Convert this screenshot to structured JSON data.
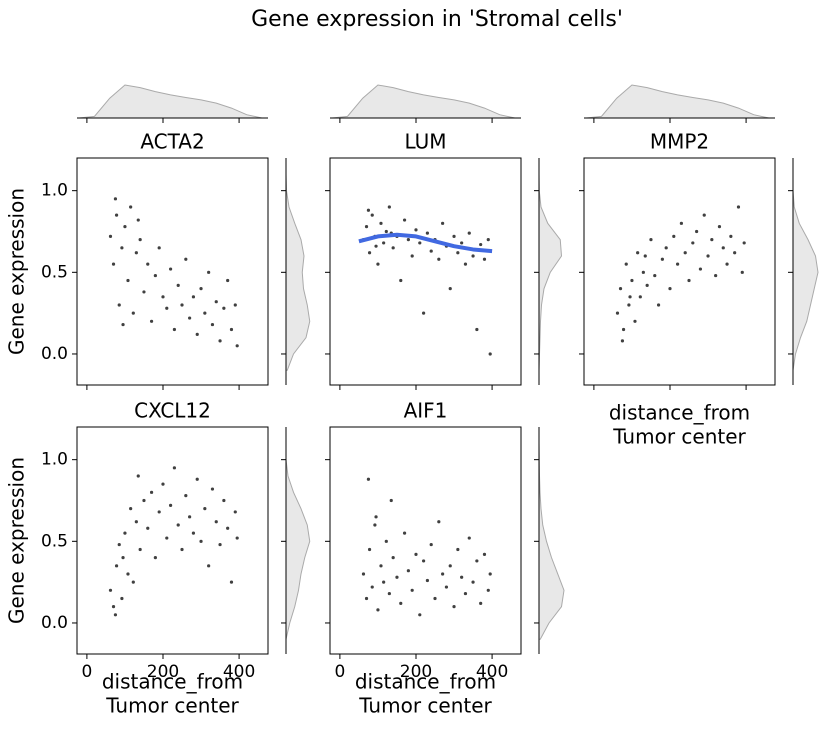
{
  "chart_data": {
    "type": "scatter",
    "title": "Gene expression in 'Stromal cells'",
    "y_label": "Gene expression",
    "x_label": [
      "distance_from",
      "Tumor center"
    ],
    "xlim": [
      -26,
      476
    ],
    "xticks": [
      0,
      200,
      400
    ],
    "ylim": [
      -0.19,
      1.2
    ],
    "yticks": [
      {
        "value": 0,
        "label": "0.0"
      },
      0.5,
      {
        "value": 1,
        "label": "1.0"
      }
    ],
    "point_color": "#000000",
    "kde_fill": "#e8e8e8",
    "kde_stroke": "#aaaaaa",
    "x_kde": {
      "x": [
        -20,
        20,
        60,
        100,
        140,
        180,
        220,
        260,
        300,
        340,
        380,
        420,
        460
      ],
      "density": [
        0,
        0.05,
        0.6,
        1.0,
        0.92,
        0.8,
        0.7,
        0.62,
        0.55,
        0.45,
        0.3,
        0.1,
        0
      ]
    },
    "panels": [
      {
        "title": "ACTA2",
        "x": [
          62,
          70,
          78,
          85,
          92,
          100,
          108,
          115,
          122,
          130,
          140,
          150,
          160,
          170,
          180,
          190,
          200,
          210,
          220,
          230,
          240,
          250,
          260,
          270,
          280,
          290,
          300,
          310,
          320,
          330,
          340,
          350,
          360,
          370,
          380,
          390,
          395,
          75,
          95,
          135
        ],
        "y": [
          0.72,
          0.55,
          0.85,
          0.3,
          0.65,
          0.78,
          0.45,
          0.9,
          0.25,
          0.62,
          0.7,
          0.38,
          0.55,
          0.2,
          0.48,
          0.65,
          0.35,
          0.28,
          0.52,
          0.15,
          0.42,
          0.3,
          0.58,
          0.22,
          0.35,
          0.12,
          0.4,
          0.25,
          0.5,
          0.18,
          0.32,
          0.08,
          0.28,
          0.45,
          0.15,
          0.3,
          0.05,
          0.95,
          0.18,
          0.82
        ],
        "y_kde": {
          "y": [
            -0.1,
            0,
            0.1,
            0.2,
            0.3,
            0.4,
            0.5,
            0.6,
            0.7,
            0.8,
            0.9,
            1.0,
            1.1
          ],
          "density": [
            0.05,
            0.3,
            0.8,
            0.95,
            0.85,
            0.7,
            0.65,
            0.72,
            0.6,
            0.35,
            0.12,
            0.02,
            0
          ]
        }
      },
      {
        "title": "LUM",
        "x": [
          62,
          70,
          78,
          85,
          92,
          100,
          108,
          115,
          122,
          130,
          140,
          150,
          160,
          170,
          180,
          190,
          200,
          210,
          220,
          230,
          240,
          250,
          260,
          270,
          280,
          290,
          300,
          310,
          320,
          330,
          340,
          350,
          360,
          370,
          380,
          390,
          395,
          75,
          95,
          135
        ],
        "y": [
          0.7,
          0.78,
          0.62,
          0.85,
          0.72,
          0.55,
          0.8,
          0.68,
          0.75,
          0.9,
          0.65,
          0.72,
          0.45,
          0.82,
          0.7,
          0.6,
          0.76,
          0.68,
          0.25,
          0.74,
          0.63,
          0.7,
          0.58,
          0.8,
          0.66,
          0.4,
          0.72,
          0.62,
          0.68,
          0.55,
          0.74,
          0.6,
          0.15,
          0.67,
          0.58,
          0.7,
          0.0,
          0.88,
          0.66,
          0.74
        ],
        "fit": {
          "x": [
            50,
            100,
            150,
            200,
            250,
            300,
            350,
            400
          ],
          "y": [
            0.69,
            0.72,
            0.73,
            0.72,
            0.69,
            0.66,
            0.64,
            0.63
          ],
          "color": "#4169e1"
        },
        "y_kde": {
          "y": [
            -0.1,
            0,
            0.1,
            0.2,
            0.3,
            0.4,
            0.5,
            0.6,
            0.7,
            0.8,
            0.9,
            1.0,
            1.1
          ],
          "density": [
            0,
            0.02,
            0.04,
            0.06,
            0.1,
            0.2,
            0.45,
            0.9,
            0.85,
            0.35,
            0.08,
            0.01,
            0
          ]
        }
      },
      {
        "title": "MMP2",
        "x": [
          62,
          70,
          78,
          85,
          92,
          100,
          108,
          115,
          122,
          130,
          140,
          150,
          160,
          170,
          180,
          190,
          200,
          210,
          220,
          230,
          240,
          250,
          260,
          270,
          280,
          290,
          300,
          310,
          320,
          330,
          340,
          350,
          360,
          370,
          380,
          390,
          395,
          75,
          95,
          135
        ],
        "y": [
          0.25,
          0.4,
          0.15,
          0.55,
          0.3,
          0.45,
          0.2,
          0.62,
          0.35,
          0.5,
          0.42,
          0.7,
          0.48,
          0.3,
          0.58,
          0.65,
          0.4,
          0.72,
          0.55,
          0.8,
          0.62,
          0.45,
          0.68,
          0.75,
          0.52,
          0.85,
          0.6,
          0.7,
          0.48,
          0.78,
          0.65,
          0.55,
          0.72,
          0.62,
          0.9,
          0.5,
          0.68,
          0.08,
          0.35,
          0.6
        ],
        "y_kde": {
          "y": [
            -0.1,
            0,
            0.1,
            0.2,
            0.3,
            0.4,
            0.5,
            0.6,
            0.7,
            0.8,
            0.9,
            1.0,
            1.1
          ],
          "density": [
            0,
            0.1,
            0.3,
            0.55,
            0.7,
            0.85,
            1.0,
            0.9,
            0.6,
            0.25,
            0.05,
            0,
            0
          ]
        }
      },
      {
        "title": "CXCL12",
        "x": [
          62,
          70,
          78,
          85,
          92,
          100,
          108,
          115,
          122,
          130,
          140,
          150,
          160,
          170,
          180,
          190,
          200,
          210,
          220,
          230,
          240,
          250,
          260,
          270,
          280,
          290,
          300,
          310,
          320,
          330,
          340,
          350,
          360,
          370,
          380,
          390,
          395,
          75,
          95,
          135
        ],
        "y": [
          0.2,
          0.1,
          0.35,
          0.48,
          0.15,
          0.55,
          0.3,
          0.7,
          0.25,
          0.62,
          0.45,
          0.75,
          0.58,
          0.8,
          0.4,
          0.68,
          0.85,
          0.52,
          0.72,
          0.95,
          0.6,
          0.45,
          0.78,
          0.65,
          0.55,
          0.88,
          0.5,
          0.7,
          0.35,
          0.82,
          0.62,
          0.48,
          0.75,
          0.58,
          0.25,
          0.68,
          0.52,
          0.05,
          0.4,
          0.9
        ],
        "y_kde": {
          "y": [
            -0.1,
            0,
            0.1,
            0.2,
            0.3,
            0.4,
            0.5,
            0.6,
            0.7,
            0.8,
            0.9,
            1.0,
            1.1
          ],
          "density": [
            0,
            0.15,
            0.35,
            0.5,
            0.6,
            0.75,
            0.95,
            0.85,
            0.6,
            0.3,
            0.08,
            0,
            0
          ]
        }
      },
      {
        "title": "AIF1",
        "x": [
          62,
          70,
          78,
          85,
          92,
          100,
          108,
          115,
          122,
          130,
          140,
          150,
          160,
          170,
          180,
          190,
          200,
          210,
          220,
          230,
          240,
          250,
          260,
          270,
          280,
          290,
          300,
          310,
          320,
          330,
          340,
          350,
          360,
          370,
          380,
          390,
          395,
          75,
          95,
          135
        ],
        "y": [
          0.3,
          0.15,
          0.45,
          0.22,
          0.6,
          0.08,
          0.35,
          0.25,
          0.5,
          0.18,
          0.4,
          0.28,
          0.12,
          0.55,
          0.32,
          0.2,
          0.42,
          0.05,
          0.38,
          0.26,
          0.48,
          0.15,
          0.62,
          0.3,
          0.22,
          0.35,
          0.1,
          0.45,
          0.28,
          0.18,
          0.52,
          0.25,
          0.38,
          0.12,
          0.42,
          0.2,
          0.3,
          0.88,
          0.65,
          0.75
        ],
        "y_kde": {
          "y": [
            -0.1,
            0,
            0.1,
            0.2,
            0.3,
            0.4,
            0.5,
            0.6,
            0.7,
            0.8,
            0.9,
            1.0,
            1.1
          ],
          "density": [
            0.05,
            0.4,
            0.9,
            1.0,
            0.75,
            0.5,
            0.3,
            0.15,
            0.08,
            0.04,
            0.02,
            0.01,
            0
          ]
        }
      }
    ]
  }
}
